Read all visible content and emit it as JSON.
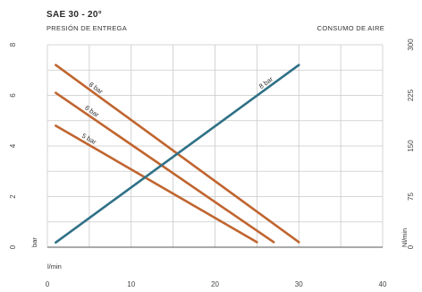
{
  "chart_data": {
    "type": "line",
    "title": "SAE 30 - 20°",
    "left_subtitle": "PRESIÓN DE ENTREGA",
    "right_subtitle": "CONSUMO DE AIRE",
    "xlabel": "l/min",
    "ylabel_left": "bar",
    "ylabel_right": "Nl/min",
    "xlim": [
      0,
      40
    ],
    "ylim_left": [
      0,
      8
    ],
    "ylim_right": [
      0,
      300
    ],
    "x_ticks": [
      "0",
      "10",
      "20",
      "30",
      "40"
    ],
    "y_left_ticks": [
      "0",
      "2",
      "4",
      "6",
      "8"
    ],
    "y_right_ticks": [
      "0",
      "75",
      "150",
      "225",
      "300"
    ],
    "grid": true,
    "pressure_series": [
      {
        "name": "8 bar",
        "color": "#c0652f",
        "x": [
          1,
          30
        ],
        "y": [
          7.2,
          0.2
        ]
      },
      {
        "name": "6 bar",
        "color": "#c0652f",
        "x": [
          1,
          27
        ],
        "y": [
          6.1,
          0.2
        ]
      },
      {
        "name": "5 bar",
        "color": "#c0652f",
        "x": [
          1,
          25
        ],
        "y": [
          4.8,
          0.2
        ]
      }
    ],
    "air_series": {
      "name": "8 bar",
      "color": "#2f7187",
      "x": [
        1,
        30
      ],
      "y": [
        7,
        270
      ]
    }
  }
}
